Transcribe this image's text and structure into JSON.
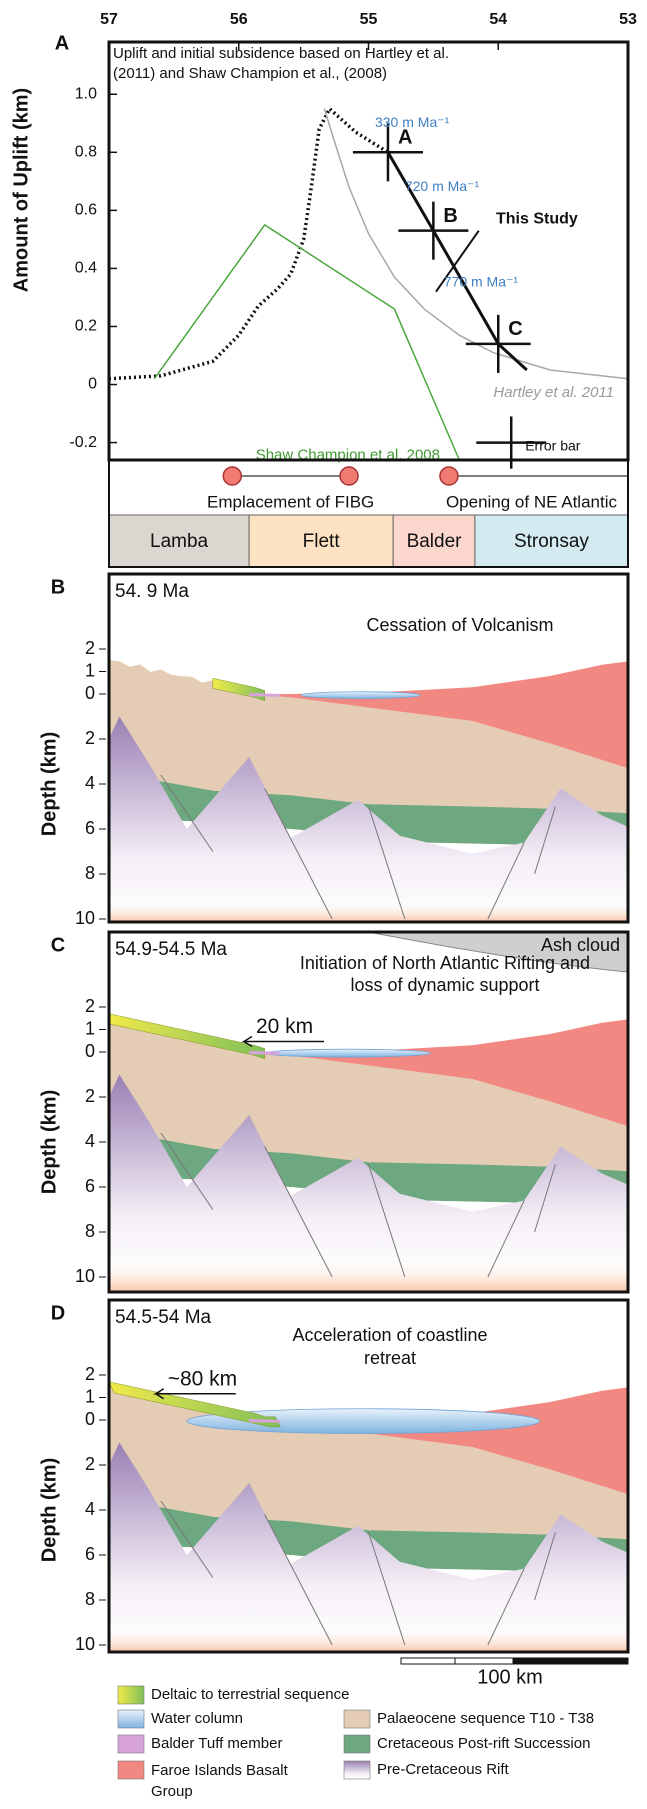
{
  "chart_data": {
    "type": "line",
    "panel_label": "A",
    "y_label": "Amount of Uplift (km)",
    "xlim": [
      57,
      53
    ],
    "xticks": [
      57,
      56,
      55,
      54,
      53
    ],
    "ylim": [
      -0.26,
      1.18
    ],
    "yticks": [
      -0.2,
      0,
      0.2,
      0.4,
      0.6,
      0.8,
      {
        "value": 1,
        "label": "1.0"
      }
    ],
    "series": [
      {
        "name": "Uplift and initial subsidence based on Hartley et al. (2011) and Shaw Champion et al., (2008)",
        "color": "#111111",
        "style": "dotted",
        "x": [
          57,
          56.6,
          56.2,
          56.0,
          55.85,
          55.7,
          55.6,
          55.5,
          55.45,
          55.38,
          55.3,
          55.1,
          54.85
        ],
        "values": [
          0.02,
          0.03,
          0.08,
          0.17,
          0.27,
          0.33,
          0.38,
          0.5,
          0.65,
          0.88,
          0.95,
          0.87,
          0.8
        ]
      },
      {
        "name": "Hartley et al. 2011",
        "color": "#a8a8a8",
        "style": "solid",
        "x": [
          55.34,
          55.25,
          55.15,
          55.0,
          54.8,
          54.57,
          54.3,
          54.04,
          53.6,
          53
        ],
        "values": [
          0.95,
          0.82,
          0.68,
          0.52,
          0.37,
          0.26,
          0.17,
          0.11,
          0.05,
          0.02
        ]
      },
      {
        "name": "Shaw Champion et al. 2008",
        "color": "#4aa83c",
        "style": "solid",
        "x": [
          56.65,
          55.8,
          54.8,
          54.3
        ],
        "values": [
          0.02,
          0.55,
          0.26,
          -0.26
        ]
      },
      {
        "name": "This Study",
        "color": "#111111",
        "style": "solid",
        "x": [
          54.85,
          54.5,
          54.0,
          53.78
        ],
        "values": [
          0.8,
          0.53,
          0.14,
          0.05
        ],
        "point_labels": [
          "A",
          "B",
          "C",
          null
        ],
        "x_error": [
          0.27,
          0.27,
          0.25,
          null
        ],
        "y_error": [
          0.1,
          0.1,
          0.1,
          null
        ]
      }
    ],
    "rates": [
      "330 m Ma⁻¹",
      "720 m Ma⁻¹",
      "770 m Ma⁻¹"
    ],
    "error_bar_example": {
      "label": "Error bar",
      "x": 53.9,
      "y": -0.2,
      "x_error": 0.27,
      "y_error": 0.09
    },
    "events": [
      {
        "label": "Emplacement of FIBG",
        "start": 56.05,
        "end": 55.15
      },
      {
        "label": "Opening of NE Atlantic",
        "start": 54.38
      }
    ],
    "stages": [
      {
        "name": "Lamba",
        "start": 57,
        "end": 55.92,
        "color": "#dcd6d1"
      },
      {
        "name": "Flett",
        "start": 55.92,
        "end": 54.81,
        "color": "#fde3c3"
      },
      {
        "name": "Balder",
        "start": 54.81,
        "end": 54.18,
        "color": "#fbd6cc"
      },
      {
        "name": "Stronsay",
        "start": 54.18,
        "end": 53,
        "color": "#d3eaf0"
      }
    ]
  },
  "depth_label": "Depth (km)",
  "depth_ticks": [
    {
      "value": -2,
      "label": "2"
    },
    {
      "value": -1,
      "label": "1"
    },
    0,
    2,
    4,
    6,
    8,
    10
  ],
  "sections": [
    {
      "label": "B",
      "age": "54. 9 Ma",
      "title": "Cessation of Volcanism"
    },
    {
      "label": "C",
      "age": "54.9-54.5 Ma",
      "title": "Initiation of North Atlantic Rifting and loss of dynamic support",
      "note": "20 km",
      "cloud": "Ash cloud"
    },
    {
      "label": "D",
      "age": "54.5-54 Ma",
      "title": "Acceleration of coastline retreat",
      "note": "~80 km"
    }
  ],
  "scale_bar": "100 km",
  "legend": [
    {
      "name": "Deltaic to terrestrial sequence",
      "color": "#c9dc4a"
    },
    {
      "name": "Water column",
      "color": "#a9cdea"
    },
    {
      "name": "Balder Tuff member",
      "color": "#d8a3d8"
    },
    {
      "name": "Faroe Islands Basalt Group",
      "color": "#f18882"
    },
    {
      "name": "Palaeocene sequence T10 - T38",
      "color": "#e5cdb5"
    },
    {
      "name": "Cretaceous Post-rift Succession",
      "color": "#6ea880"
    },
    {
      "name": "Pre-Cretaceous Rift",
      "color": "#8c6aa8"
    }
  ]
}
